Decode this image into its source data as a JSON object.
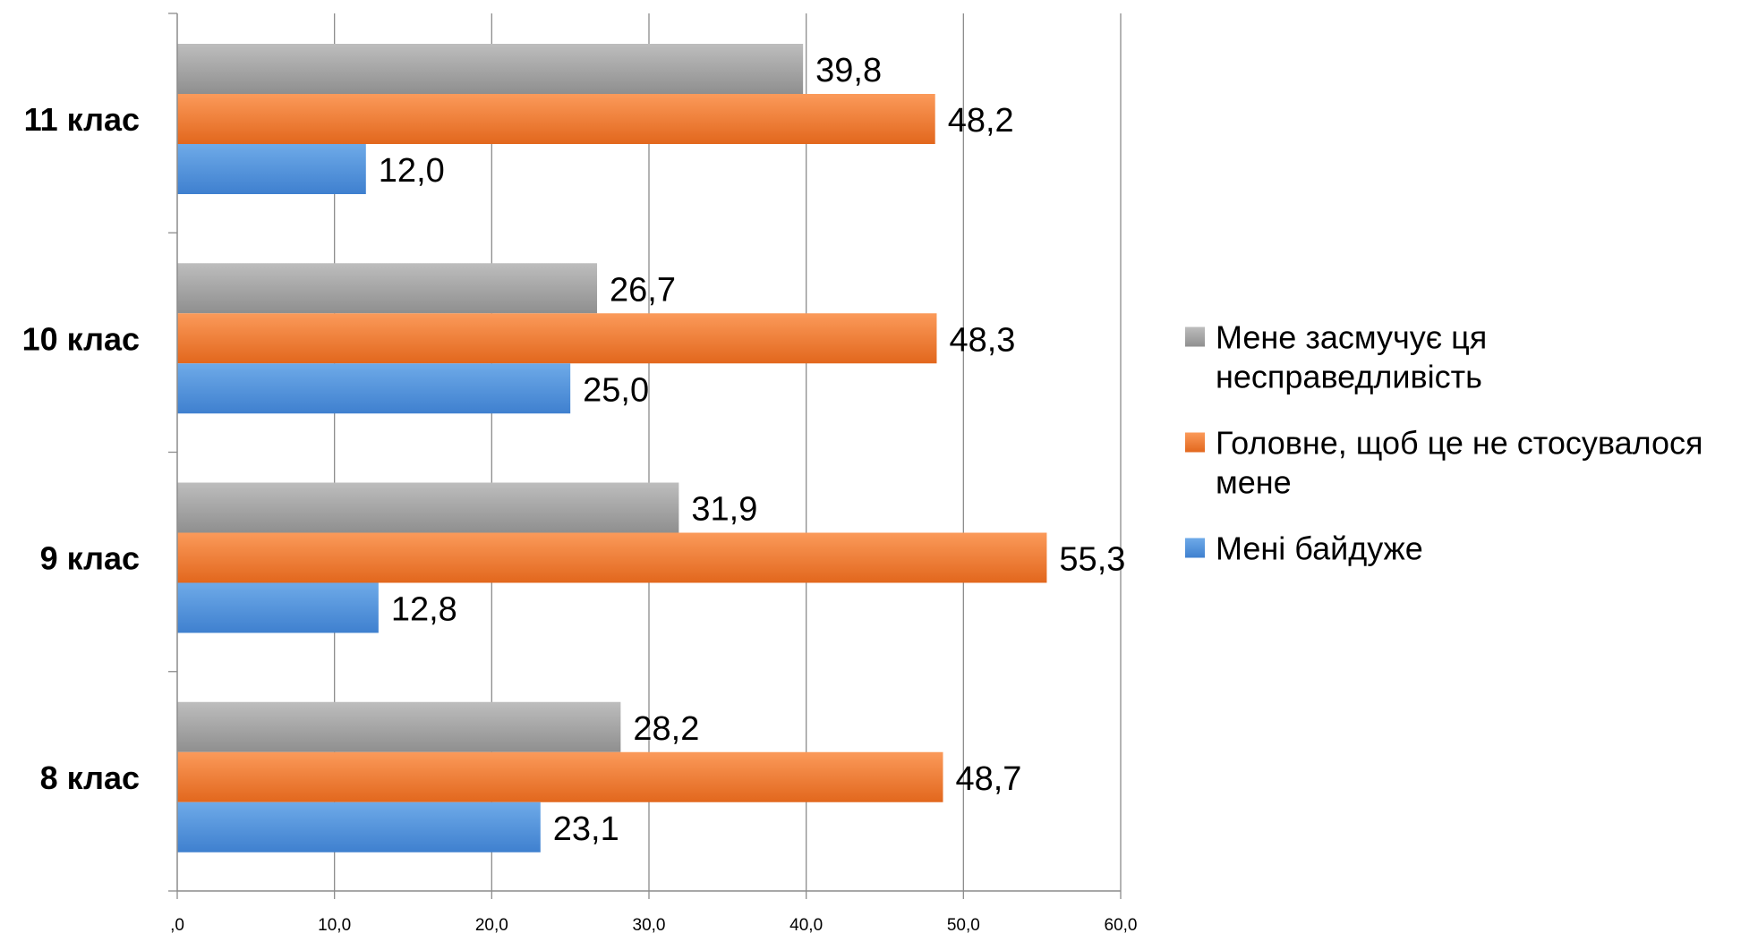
{
  "chart_data": {
    "type": "bar",
    "orientation": "horizontal",
    "categories": [
      "8 клас",
      "9 клас",
      "10 клас",
      "11 клас"
    ],
    "series": [
      {
        "name": "Мені байдуже",
        "color": "#4f93dc",
        "values": [
          23.1,
          12.8,
          25.0,
          12.0
        ],
        "labels": [
          "23,1",
          "12,8",
          "25,0",
          "12,0"
        ]
      },
      {
        "name": "Головне, щоб це не стосувалося мене",
        "color": "#f07a33",
        "values": [
          48.7,
          55.3,
          48.3,
          48.2
        ],
        "labels": [
          "48,7",
          "55,3",
          "48,3",
          "48,2"
        ]
      },
      {
        "name": "Мене засмучує ця несправедливість",
        "color": "#a3a3a3",
        "values": [
          28.2,
          31.9,
          26.7,
          39.8
        ],
        "labels": [
          "28,2",
          "31,9",
          "26,7",
          "39,8"
        ]
      }
    ],
    "xlim": [
      0,
      60
    ],
    "x_ticks": [
      ",0",
      "10,0",
      "20,0",
      "30,0",
      "40,0",
      "50,0",
      "60,0"
    ],
    "grid": "vertical",
    "legend": {
      "position": "right",
      "items": [
        {
          "color": "#a3a3a3",
          "lines": [
            "Мене засмучує ця",
            "несправедливість"
          ]
        },
        {
          "color": "#f07a33",
          "lines": [
            "Головне, щоб це не стосувалося",
            "мене"
          ]
        },
        {
          "color": "#4f93dc",
          "lines": [
            "Мені байдуже"
          ]
        }
      ]
    }
  }
}
